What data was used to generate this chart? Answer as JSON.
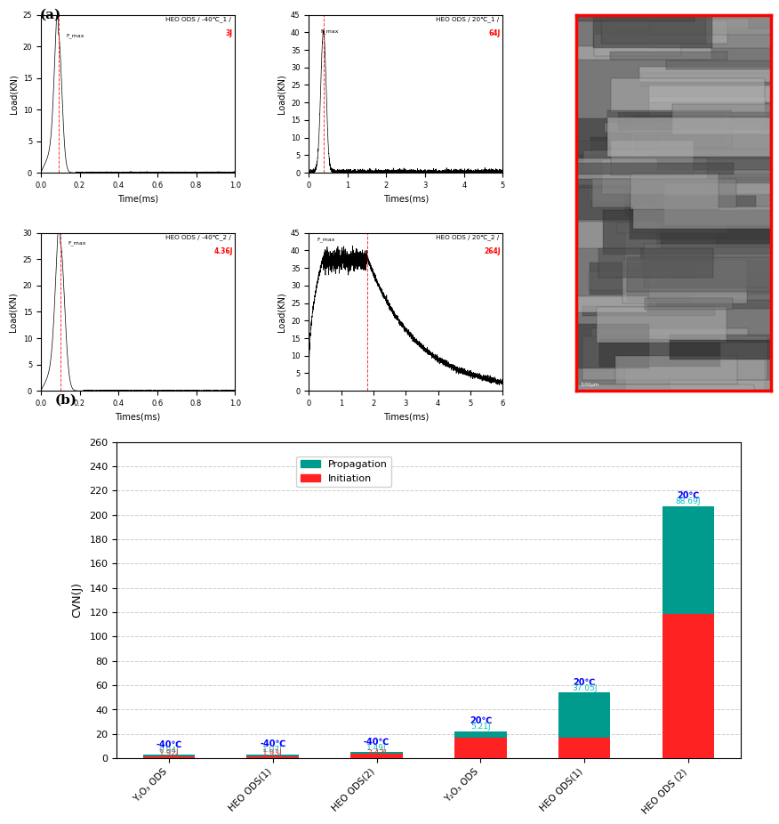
{
  "title_a": "(a)",
  "title_b": "(b)",
  "bar_categories": [
    "Y₂O₃ ODS",
    "HEO ODS(1)",
    "HEO ODS(2)",
    "Y₂O₃ ODS",
    "HEO ODS(1)",
    "HEO ODS (2)"
  ],
  "initiation_values": [
    1.92,
    1.93,
    3.47,
    17.1,
    16.95,
    118.31
  ],
  "propagation_values": [
    0.94,
    1.07,
    1.49,
    5.21,
    37.05,
    88.69
  ],
  "initiation_color": "#FF2222",
  "propagation_color": "#009B8D",
  "ylim": [
    0,
    260
  ],
  "yticks": [
    0,
    20,
    40,
    60,
    80,
    100,
    120,
    140,
    160,
    180,
    200,
    220,
    240,
    260
  ],
  "ylabel": "CVN(J)",
  "temp_labels": [
    "-40℃",
    "-40℃",
    "-40℃",
    "20℃",
    "20℃",
    "20℃"
  ],
  "temp_label_color": "blue",
  "propagation_label_color": "#00BFBF",
  "initiation_label_color": "#FF2222",
  "bg_color": "#FFFFFF",
  "grid_color": "#CCCCCC"
}
